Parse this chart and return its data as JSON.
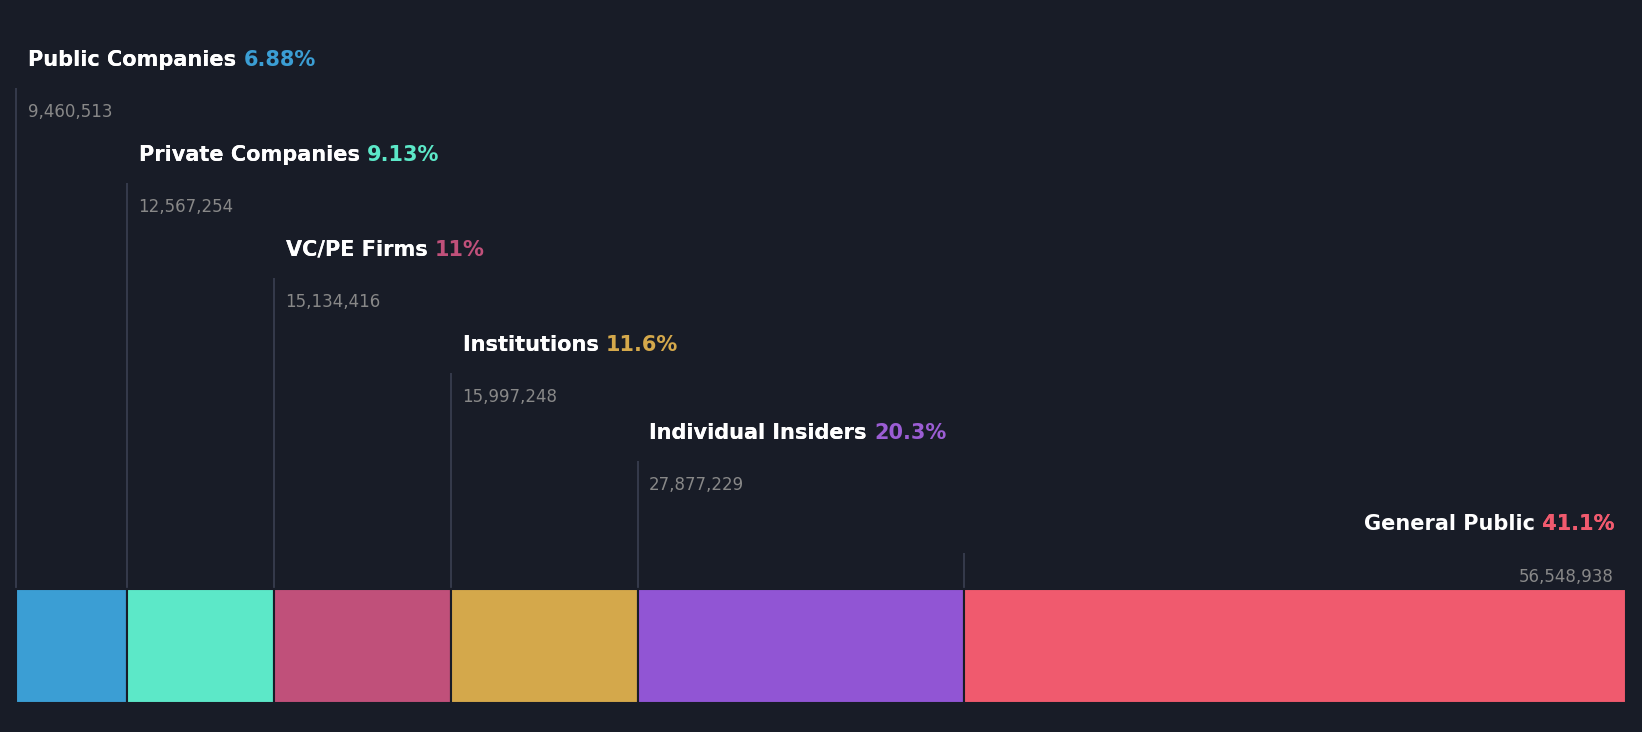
{
  "categories": [
    "Public Companies",
    "Private Companies",
    "VC/PE Firms",
    "Institutions",
    "Individual Insiders",
    "General Public"
  ],
  "percentages": [
    6.88,
    9.13,
    11.0,
    11.6,
    20.3,
    41.1
  ],
  "values": [
    9460513,
    12567254,
    15134416,
    15997248,
    27877229,
    56548938
  ],
  "pct_labels": [
    "6.88%",
    "9.13%",
    "11%",
    "11.6%",
    "20.3%",
    "41.1%"
  ],
  "bar_colors": [
    "#3b9ed4",
    "#5ce8c8",
    "#c0507a",
    "#d4a84b",
    "#9155d4",
    "#f05a6e"
  ],
  "bg_color": "#181c27",
  "value_color": "#888888",
  "pct_colors": [
    "#3b9ed4",
    "#5ce8c8",
    "#c0507a",
    "#d4a84b",
    "#9b5dd4",
    "#f05a6e"
  ],
  "figsize": [
    16.42,
    7.32
  ],
  "dpi": 100,
  "label_fontsize": 15,
  "value_fontsize": 12,
  "line_color": "#3a3f52"
}
